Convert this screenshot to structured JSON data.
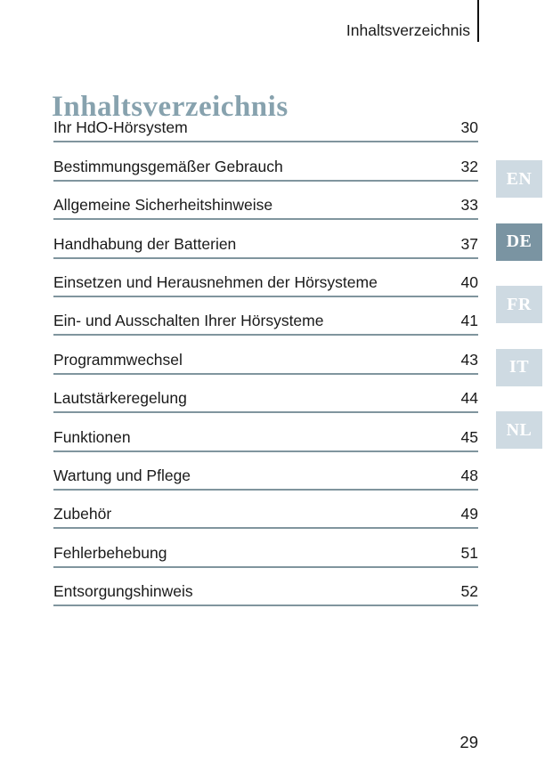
{
  "header": {
    "title": "Inhaltsverzeichnis"
  },
  "main": {
    "title": "Inhaltsverzeichnis"
  },
  "toc": {
    "entries": [
      {
        "label": "Ihr HdO-Hörsystem",
        "page": "30"
      },
      {
        "label": "Bestimmungsgemäßer Gebrauch",
        "page": "32"
      },
      {
        "label": "Allgemeine Sicherheitshinweise",
        "page": "33"
      },
      {
        "label": "Handhabung der Batterien",
        "page": "37"
      },
      {
        "label": "Einsetzen und Herausnehmen der Hörsysteme",
        "page": "40"
      },
      {
        "label": "Ein- und Ausschalten Ihrer Hörsysteme",
        "page": "41"
      },
      {
        "label": "Programmwechsel",
        "page": "43"
      },
      {
        "label": "Lautstärkeregelung",
        "page": "44"
      },
      {
        "label": "Funktionen",
        "page": "45"
      },
      {
        "label": "Wartung und Pflege",
        "page": "48"
      },
      {
        "label": "Zubehör",
        "page": "49"
      },
      {
        "label": "Fehlerbehebung",
        "page": "51"
      },
      {
        "label": "Entsorgungshinweis",
        "page": "52"
      }
    ]
  },
  "language_tabs": [
    {
      "label": "EN",
      "active": false
    },
    {
      "label": "DE",
      "active": true
    },
    {
      "label": "FR",
      "active": false
    },
    {
      "label": "IT",
      "active": false
    },
    {
      "label": "NL",
      "active": false
    }
  ],
  "footer": {
    "page_number": "29"
  },
  "colors": {
    "text": "#1A1A1A",
    "title": "#87A2AE",
    "rule": "#80959E",
    "active_tab": "#7A94A2",
    "inactive_tab": "#CEDAE2"
  }
}
